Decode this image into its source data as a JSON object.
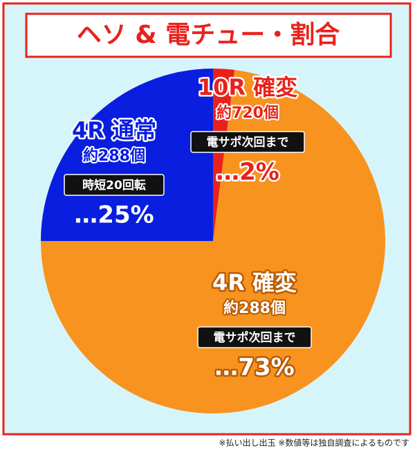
{
  "chart_data": {
    "type": "pie",
    "title": "ヘソ & 電チュー・割合",
    "categories": [
      "10R 確変",
      "4R 確変",
      "4R 通常"
    ],
    "values": [
      2,
      73,
      25
    ],
    "value_labels": [
      "…2%",
      "…73%",
      "…25%"
    ],
    "sublabels": [
      "約720個",
      "約288個",
      "約288個"
    ],
    "notes": [
      "電サポ次回まで",
      "電サポ次回まで",
      "時短20回転"
    ],
    "colors": [
      "#e8221b",
      "#f7931e",
      "#0a1ee0"
    ],
    "footnote": "※払い出し出玉 ※数値等は独自調査によるものです"
  }
}
